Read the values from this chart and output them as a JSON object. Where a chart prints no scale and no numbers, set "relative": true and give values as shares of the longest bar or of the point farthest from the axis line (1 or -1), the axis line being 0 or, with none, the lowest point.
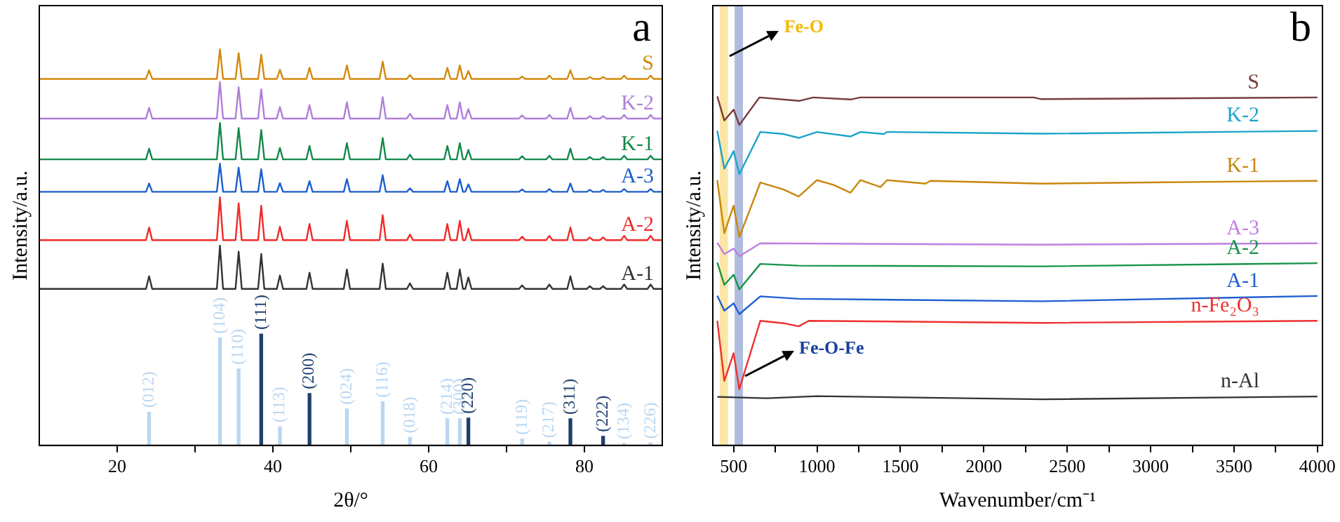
{
  "chart_data": [
    {
      "type": "line",
      "relative": true,
      "marker": "none",
      "legend": false,
      "xlabel": "2θ/°",
      "ylabel": "Intensity/a.u.",
      "annotations": [
        "a",
        {
          "text": "(012)",
          "x": 24.1,
          "y": 0.084
        },
        {
          "text": "(104)",
          "x": 33.2,
          "y": 0.271
        },
        {
          "text": "(110)",
          "x": 35.6,
          "y": 0.193
        },
        {
          "text": "(113)",
          "x": 40.9,
          "y": 0.047
        },
        {
          "text": "(024)",
          "x": 49.5,
          "y": 0.092
        },
        {
          "text": "(116)",
          "x": 54.1,
          "y": 0.11
        },
        {
          "text": "(018)",
          "x": 57.6,
          "y": 0.02
        },
        {
          "text": "(214)",
          "x": 62.4,
          "y": 0.067
        },
        {
          "text": "(300)",
          "x": 64.0,
          "y": 0.067
        },
        {
          "text": "(119)",
          "x": 72.0,
          "y": 0.016
        },
        {
          "text": "(217)",
          "x": 75.5,
          "y": 0.008
        },
        {
          "text": "(134)",
          "x": 85.1,
          "y": 0.005
        },
        {
          "text": "(226)",
          "x": 88.5,
          "y": 0.006
        },
        {
          "text": "(111)",
          "x": 38.5,
          "y": 0.281
        },
        {
          "text": "(200)",
          "x": 44.7,
          "y": 0.131
        },
        {
          "text": "(220)",
          "x": 65.1,
          "y": 0.069
        },
        {
          "text": "(311)",
          "x": 78.2,
          "y": 0.067
        },
        {
          "text": "(222)",
          "x": 82.4,
          "y": 0.023
        }
      ],
      "xlim": [
        10,
        90
      ],
      "xticks": [
        20,
        {
          "value": 30,
          "label": null
        },
        40,
        {
          "value": 50,
          "label": null
        },
        60,
        {
          "value": 70,
          "label": null
        },
        80
      ],
      "x": [
        10,
        23.7,
        24.1,
        24.5,
        32.8,
        33.2,
        33.6,
        35.2,
        35.6,
        36.0,
        38.1,
        38.5,
        38.9,
        40.5,
        40.9,
        41.3,
        44.3,
        44.7,
        45.1,
        49.1,
        49.5,
        49.9,
        53.7,
        54.1,
        54.5,
        57.2,
        57.6,
        58.0,
        62.0,
        62.4,
        62.8,
        63.6,
        64.0,
        64.4,
        64.7,
        65.1,
        65.5,
        71.6,
        72.0,
        72.4,
        75.1,
        75.5,
        75.9,
        77.8,
        78.2,
        78.6,
        80.3,
        80.7,
        81.1,
        82.0,
        82.4,
        82.8,
        84.7,
        85.1,
        85.5,
        88.1,
        88.5,
        88.9,
        90
      ],
      "series": [
        {
          "name": "S",
          "color": "#d4890b",
          "values": [
            0.925,
            0.925,
            0.947,
            0.925,
            0.925,
            1.0,
            0.925,
            0.925,
            0.99,
            0.925,
            0.925,
            0.986,
            0.925,
            0.925,
            0.948,
            0.925,
            0.925,
            0.953,
            0.925,
            0.925,
            0.959,
            0.925,
            0.925,
            0.969,
            0.925,
            0.925,
            0.935,
            0.925,
            0.925,
            0.953,
            0.925,
            0.925,
            0.959,
            0.925,
            0.925,
            0.945,
            0.925,
            0.925,
            0.931,
            0.925,
            0.925,
            0.933,
            0.925,
            0.925,
            0.947,
            0.925,
            0.925,
            0.93,
            0.925,
            0.925,
            0.93,
            0.925,
            0.925,
            0.933,
            0.925,
            0.925,
            0.933,
            0.925,
            0.925
          ]
        },
        {
          "name": "K-2",
          "color": "#b07ed8",
          "values": [
            0.825,
            0.825,
            0.852,
            0.825,
            0.825,
            0.917,
            0.825,
            0.825,
            0.904,
            0.825,
            0.825,
            0.899,
            0.825,
            0.825,
            0.854,
            0.825,
            0.825,
            0.859,
            0.825,
            0.825,
            0.866,
            0.825,
            0.825,
            0.879,
            0.825,
            0.825,
            0.837,
            0.825,
            0.825,
            0.859,
            0.825,
            0.825,
            0.866,
            0.825,
            0.825,
            0.849,
            0.825,
            0.825,
            0.833,
            0.825,
            0.825,
            0.834,
            0.825,
            0.825,
            0.852,
            0.825,
            0.825,
            0.831,
            0.825,
            0.825,
            0.831,
            0.825,
            0.825,
            0.834,
            0.825,
            0.825,
            0.834,
            0.825,
            0.825
          ]
        },
        {
          "name": "K-1",
          "color": "#13894a",
          "values": [
            0.722,
            0.722,
            0.749,
            0.722,
            0.722,
            0.814,
            0.722,
            0.722,
            0.801,
            0.722,
            0.722,
            0.796,
            0.722,
            0.722,
            0.751,
            0.722,
            0.722,
            0.756,
            0.722,
            0.722,
            0.763,
            0.722,
            0.722,
            0.776,
            0.722,
            0.722,
            0.734,
            0.722,
            0.722,
            0.756,
            0.722,
            0.722,
            0.763,
            0.722,
            0.722,
            0.746,
            0.722,
            0.722,
            0.73,
            0.722,
            0.722,
            0.731,
            0.722,
            0.722,
            0.749,
            0.722,
            0.722,
            0.728,
            0.722,
            0.722,
            0.728,
            0.722,
            0.722,
            0.731,
            0.722,
            0.722,
            0.731,
            0.722,
            0.722
          ]
        },
        {
          "name": "A-3",
          "color": "#1b5fcc",
          "values": [
            0.64,
            0.64,
            0.661,
            0.64,
            0.64,
            0.711,
            0.64,
            0.64,
            0.701,
            0.64,
            0.64,
            0.697,
            0.64,
            0.64,
            0.662,
            0.64,
            0.64,
            0.667,
            0.64,
            0.64,
            0.672,
            0.64,
            0.64,
            0.682,
            0.64,
            0.64,
            0.649,
            0.64,
            0.64,
            0.667,
            0.64,
            0.64,
            0.672,
            0.64,
            0.64,
            0.659,
            0.64,
            0.64,
            0.646,
            0.64,
            0.64,
            0.647,
            0.64,
            0.64,
            0.661,
            0.64,
            0.64,
            0.645,
            0.64,
            0.64,
            0.645,
            0.64,
            0.64,
            0.647,
            0.64,
            0.64,
            0.647,
            0.64,
            0.64
          ]
        },
        {
          "name": "A-2",
          "color": "#f02a2a",
          "values": [
            0.518,
            0.518,
            0.55,
            0.518,
            0.518,
            0.626,
            0.518,
            0.518,
            0.611,
            0.518,
            0.518,
            0.605,
            0.518,
            0.518,
            0.552,
            0.518,
            0.518,
            0.559,
            0.518,
            0.518,
            0.567,
            0.518,
            0.518,
            0.581,
            0.518,
            0.518,
            0.532,
            0.518,
            0.518,
            0.559,
            0.518,
            0.518,
            0.567,
            0.518,
            0.518,
            0.547,
            0.518,
            0.518,
            0.527,
            0.518,
            0.518,
            0.529,
            0.518,
            0.518,
            0.55,
            0.518,
            0.518,
            0.525,
            0.518,
            0.518,
            0.525,
            0.518,
            0.518,
            0.529,
            0.518,
            0.518,
            0.529,
            0.518,
            0.518
          ]
        },
        {
          "name": "A-1",
          "color": "#333333",
          "values": [
            0.395,
            0.395,
            0.427,
            0.395,
            0.395,
            0.504,
            0.395,
            0.395,
            0.489,
            0.395,
            0.395,
            0.483,
            0.395,
            0.395,
            0.429,
            0.395,
            0.395,
            0.436,
            0.395,
            0.395,
            0.444,
            0.395,
            0.395,
            0.459,
            0.395,
            0.395,
            0.409,
            0.395,
            0.395,
            0.436,
            0.395,
            0.395,
            0.444,
            0.395,
            0.395,
            0.424,
            0.395,
            0.395,
            0.404,
            0.395,
            0.395,
            0.406,
            0.395,
            0.395,
            0.427,
            0.395,
            0.395,
            0.402,
            0.395,
            0.395,
            0.402,
            0.395,
            0.395,
            0.406,
            0.395,
            0.395,
            0.406,
            0.395,
            0.395
          ]
        },
        {
          "type": "bar",
          "color": "#b9d7f2",
          "x": [
            24.1,
            33.2,
            35.6,
            40.9,
            49.5,
            54.1,
            57.6,
            62.4,
            64.0,
            72.0,
            75.5,
            85.1,
            88.5
          ],
          "values": [
            0.084,
            0.271,
            0.193,
            0.047,
            0.092,
            0.11,
            0.02,
            0.067,
            0.067,
            0.016,
            0.008,
            0.005,
            0.006
          ]
        },
        {
          "type": "bar",
          "color": "#1f3f6e",
          "x": [
            38.5,
            44.7,
            65.1,
            78.2,
            82.4
          ],
          "values": [
            0.281,
            0.131,
            0.069,
            0.067,
            0.023
          ]
        }
      ]
    },
    {
      "type": "line",
      "relative": true,
      "marker": "none",
      "legend": false,
      "xlabel": "Wavenumber/cm⁻¹",
      "ylabel": "Intensity/a.u.",
      "annotations": [
        "b"
      ],
      "xlim": [
        375,
        4030
      ],
      "xticks": [
        500,
        {
          "value": 750,
          "label": null
        },
        1000,
        {
          "value": 1250,
          "label": null
        },
        1500,
        {
          "value": 1750,
          "label": null
        },
        2000,
        {
          "value": 2250,
          "label": null
        },
        2500,
        {
          "value": 2750,
          "label": null
        },
        3000,
        {
          "value": 3250,
          "label": null
        },
        3500,
        {
          "value": 3750,
          "label": null
        },
        4000
      ],
      "bands": [
        {
          "axis": "x",
          "from": 416,
          "to": 466,
          "label": "Fe-O",
          "color": "#f5b800"
        },
        {
          "axis": "x",
          "from": 506,
          "to": 556,
          "label": "Fe-O-Fe",
          "color": "#1a3fa0"
        }
      ],
      "series": [
        {
          "name": "S",
          "color": "#7a3b3b",
          "x": [
            402,
            444,
            500,
            534,
            655,
            893,
            978,
            1202,
            1258,
            2298,
            2345,
            4000
          ],
          "values": [
            1.0,
            0.931,
            0.962,
            0.918,
            0.997,
            0.987,
            0.997,
            0.991,
            0.997,
            0.997,
            0.992,
            0.997
          ]
        },
        {
          "name": "K-2",
          "color": "#1aa3c8",
          "x": [
            402,
            444,
            500,
            534,
            660,
            800,
            890,
            1000,
            1200,
            1260,
            1400,
            1420,
            2350,
            4000
          ],
          "values": [
            0.901,
            0.793,
            0.843,
            0.777,
            0.898,
            0.892,
            0.881,
            0.898,
            0.885,
            0.898,
            0.892,
            0.898,
            0.893,
            0.901
          ]
        },
        {
          "name": "K-1",
          "color": "#c8870c",
          "x": [
            402,
            444,
            500,
            534,
            660,
            800,
            890,
            1000,
            1100,
            1200,
            1260,
            1380,
            1420,
            1650,
            1680,
            2350,
            2900,
            4000
          ],
          "values": [
            0.76,
            0.608,
            0.687,
            0.597,
            0.753,
            0.733,
            0.713,
            0.76,
            0.746,
            0.724,
            0.76,
            0.74,
            0.76,
            0.75,
            0.758,
            0.75,
            0.753,
            0.758
          ]
        },
        {
          "name": "A-3",
          "color": "#bf7fe0",
          "x": [
            402,
            444,
            500,
            534,
            660,
            2350,
            4000
          ],
          "values": [
            0.581,
            0.548,
            0.564,
            0.542,
            0.579,
            0.575,
            0.579
          ]
        },
        {
          "name": "A-2",
          "color": "#17944a",
          "x": [
            402,
            444,
            500,
            534,
            660,
            890,
            2350,
            4000
          ],
          "values": [
            0.524,
            0.46,
            0.489,
            0.447,
            0.52,
            0.515,
            0.513,
            0.522
          ]
        },
        {
          "name": "A-1",
          "color": "#1e5fd0",
          "x": [
            402,
            444,
            500,
            534,
            660,
            890,
            2350,
            4000
          ],
          "values": [
            0.429,
            0.386,
            0.407,
            0.376,
            0.427,
            0.42,
            0.413,
            0.428
          ]
        },
        {
          "name": "n-Fe₂O₃",
          "color": "#f03030",
          "x": [
            402,
            444,
            500,
            534,
            660,
            800,
            890,
            950,
            2350,
            4000
          ],
          "values": [
            0.357,
            0.185,
            0.264,
            0.161,
            0.357,
            0.35,
            0.341,
            0.357,
            0.351,
            0.357
          ]
        },
        {
          "name": "n-Al",
          "color": "#333333",
          "x": [
            402,
            700,
            1000,
            2350,
            4000
          ],
          "values": [
            0.139,
            0.135,
            0.141,
            0.132,
            0.14
          ]
        }
      ]
    }
  ]
}
